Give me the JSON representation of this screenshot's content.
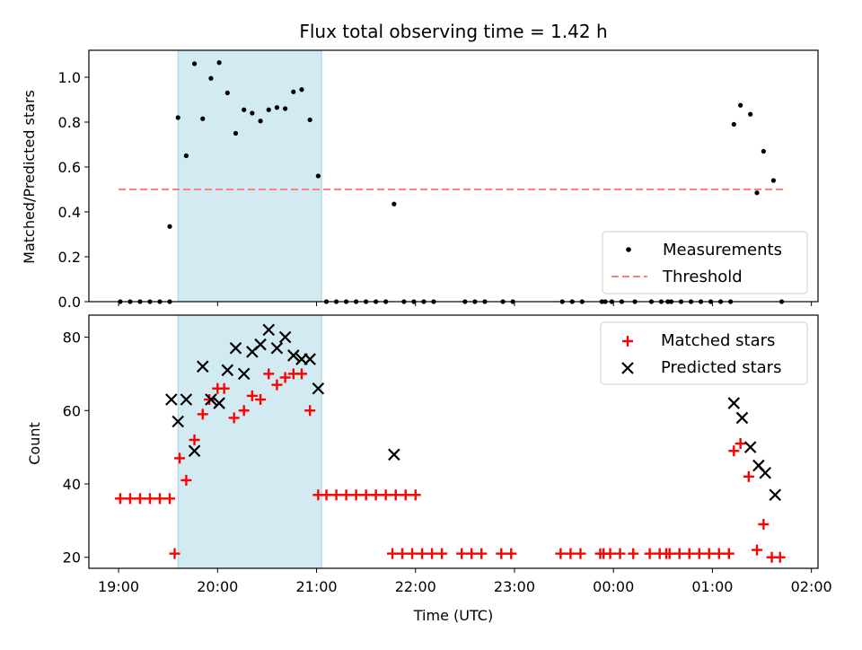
{
  "chart_data": [
    {
      "type": "scatter",
      "title": "Flux total observing time = 1.42 h",
      "xlabel": "",
      "ylabel": "Matched/Predicted stars",
      "xlim": [
        "18:42",
        "02:04"
      ],
      "ylim": [
        0,
        1.12
      ],
      "yticks": [
        "0.0",
        "0.2",
        "0.4",
        "0.6",
        "0.8",
        "1.0"
      ],
      "yticks_values": [
        0.0,
        0.2,
        0.4,
        0.6,
        0.8,
        1.0
      ],
      "grid": false,
      "legend_position": "lower right",
      "shaded_interval": {
        "start": "19:36",
        "end": "21:03",
        "color": "#add8e6"
      },
      "threshold": {
        "name": "Threshold",
        "value": 0.5,
        "x_start": "19:00",
        "x_end": "01:45",
        "color": "#ff7f7f",
        "style": "dashed"
      },
      "series": [
        {
          "name": "Measurements",
          "color": "#000000",
          "marker": "dot",
          "points": [
            [
              "19:01",
              0
            ],
            [
              "19:07",
              0
            ],
            [
              "19:13",
              0
            ],
            [
              "19:19",
              0
            ],
            [
              "19:25",
              0
            ],
            [
              "19:31",
              0
            ],
            [
              "19:31",
              0.335
            ],
            [
              "19:36",
              0.82
            ],
            [
              "19:41",
              0.65
            ],
            [
              "19:46",
              1.06
            ],
            [
              "19:51",
              0.815
            ],
            [
              "19:56",
              0.995
            ],
            [
              "20:01",
              1.065
            ],
            [
              "20:06",
              0.93
            ],
            [
              "20:11",
              0.75
            ],
            [
              "20:16",
              0.855
            ],
            [
              "20:21",
              0.84
            ],
            [
              "20:26",
              0.805
            ],
            [
              "20:31",
              0.855
            ],
            [
              "20:36",
              0.865
            ],
            [
              "20:41",
              0.86
            ],
            [
              "20:46",
              0.935
            ],
            [
              "20:51",
              0.945
            ],
            [
              "20:56",
              0.81
            ],
            [
              "21:01",
              0.56
            ],
            [
              "21:06",
              0
            ],
            [
              "21:12",
              0
            ],
            [
              "21:18",
              0
            ],
            [
              "21:24",
              0
            ],
            [
              "21:30",
              0
            ],
            [
              "21:36",
              0
            ],
            [
              "21:42",
              0
            ],
            [
              "21:47",
              0.435
            ],
            [
              "21:53",
              0
            ],
            [
              "21:59",
              0
            ],
            [
              "22:05",
              0
            ],
            [
              "22:11",
              0
            ],
            [
              "22:30",
              0
            ],
            [
              "22:36",
              0
            ],
            [
              "22:42",
              0
            ],
            [
              "22:53",
              0
            ],
            [
              "22:59",
              0
            ],
            [
              "23:29",
              0
            ],
            [
              "23:35",
              0
            ],
            [
              "23:41",
              0
            ],
            [
              "23:53",
              0
            ],
            [
              "23:55",
              0
            ],
            [
              "23:59",
              0
            ],
            [
              "00:05",
              0
            ],
            [
              "00:13",
              0
            ],
            [
              "00:23",
              0
            ],
            [
              "00:29",
              0
            ],
            [
              "00:33",
              0
            ],
            [
              "00:35",
              0
            ],
            [
              "00:41",
              0
            ],
            [
              "00:47",
              0
            ],
            [
              "00:53",
              0
            ],
            [
              "00:59",
              0
            ],
            [
              "01:05",
              0
            ],
            [
              "01:11",
              0
            ],
            [
              "01:13",
              0.79
            ],
            [
              "01:17",
              0.875
            ],
            [
              "01:23",
              0.835
            ],
            [
              "01:27",
              0.485
            ],
            [
              "01:31",
              0.67
            ],
            [
              "01:37",
              0.54
            ],
            [
              "01:42",
              0
            ]
          ]
        },
        {
          "name": "Threshold",
          "color": "#ff7f7f",
          "style": "dashed"
        }
      ]
    },
    {
      "type": "scatter",
      "title": "",
      "xlabel": "Time (UTC)",
      "ylabel": "Count",
      "xlim": [
        "18:42",
        "02:04"
      ],
      "xticks": [
        "19:00",
        "20:00",
        "21:00",
        "22:00",
        "23:00",
        "00:00",
        "01:00",
        "02:00"
      ],
      "ylim": [
        17,
        86
      ],
      "yticks": [
        "20",
        "40",
        "60",
        "80"
      ],
      "yticks_values": [
        20,
        40,
        60,
        80
      ],
      "grid": false,
      "legend_position": "upper right",
      "shaded_interval": {
        "start": "19:36",
        "end": "21:03",
        "color": "#add8e6"
      },
      "series": [
        {
          "name": "Matched stars",
          "color": "#ff0000",
          "marker": "plus",
          "points": [
            [
              "19:01",
              36
            ],
            [
              "19:07",
              36
            ],
            [
              "19:13",
              36
            ],
            [
              "19:19",
              36
            ],
            [
              "19:25",
              36
            ],
            [
              "19:31",
              36
            ],
            [
              "19:34",
              21
            ],
            [
              "19:37",
              47
            ],
            [
              "19:41",
              41
            ],
            [
              "19:46",
              52
            ],
            [
              "19:51",
              59
            ],
            [
              "19:55",
              63
            ],
            [
              "20:00",
              66
            ],
            [
              "20:04",
              66
            ],
            [
              "20:10",
              58
            ],
            [
              "20:16",
              60
            ],
            [
              "20:21",
              64
            ],
            [
              "20:26",
              63
            ],
            [
              "20:31",
              70
            ],
            [
              "20:36",
              67
            ],
            [
              "20:41",
              69
            ],
            [
              "20:46",
              70
            ],
            [
              "20:51",
              70
            ],
            [
              "20:56",
              60
            ],
            [
              "21:01",
              37
            ],
            [
              "21:06",
              37
            ],
            [
              "21:12",
              37
            ],
            [
              "21:18",
              37
            ],
            [
              "21:24",
              37
            ],
            [
              "21:30",
              37
            ],
            [
              "21:36",
              37
            ],
            [
              "21:42",
              37
            ],
            [
              "21:48",
              37
            ],
            [
              "21:54",
              37
            ],
            [
              "22:00",
              37
            ],
            [
              "21:46",
              21
            ],
            [
              "21:52",
              21
            ],
            [
              "21:58",
              21
            ],
            [
              "22:04",
              21
            ],
            [
              "22:10",
              21
            ],
            [
              "22:16",
              21
            ],
            [
              "22:28",
              21
            ],
            [
              "22:34",
              21
            ],
            [
              "22:40",
              21
            ],
            [
              "22:52",
              21
            ],
            [
              "22:58",
              21
            ],
            [
              "23:28",
              21
            ],
            [
              "23:34",
              21
            ],
            [
              "23:40",
              21
            ],
            [
              "23:52",
              21
            ],
            [
              "23:54",
              21
            ],
            [
              "23:58",
              21
            ],
            [
              "00:04",
              21
            ],
            [
              "00:12",
              21
            ],
            [
              "00:22",
              21
            ],
            [
              "00:28",
              21
            ],
            [
              "00:32",
              21
            ],
            [
              "00:34",
              21
            ],
            [
              "00:40",
              21
            ],
            [
              "00:46",
              21
            ],
            [
              "00:52",
              21
            ],
            [
              "00:58",
              21
            ],
            [
              "01:04",
              21
            ],
            [
              "01:10",
              21
            ],
            [
              "01:13",
              49
            ],
            [
              "01:17",
              51
            ],
            [
              "01:22",
              42
            ],
            [
              "01:27",
              22
            ],
            [
              "01:31",
              29
            ],
            [
              "01:36",
              20
            ],
            [
              "01:41",
              20
            ]
          ]
        },
        {
          "name": "Predicted stars",
          "color": "#000000",
          "marker": "x",
          "points": [
            [
              "19:32",
              63
            ],
            [
              "19:36",
              57
            ],
            [
              "19:41",
              63
            ],
            [
              "19:46",
              49
            ],
            [
              "19:51",
              72
            ],
            [
              "19:56",
              63
            ],
            [
              "20:01",
              62
            ],
            [
              "20:06",
              71
            ],
            [
              "20:11",
              77
            ],
            [
              "20:16",
              70
            ],
            [
              "20:21",
              76
            ],
            [
              "20:26",
              78
            ],
            [
              "20:31",
              82
            ],
            [
              "20:36",
              77
            ],
            [
              "20:41",
              80
            ],
            [
              "20:46",
              75
            ],
            [
              "20:51",
              74
            ],
            [
              "20:56",
              74
            ],
            [
              "21:01",
              66
            ],
            [
              "21:47",
              48
            ],
            [
              "01:13",
              62
            ],
            [
              "01:18",
              58
            ],
            [
              "01:23",
              50
            ],
            [
              "01:28",
              45
            ],
            [
              "01:32",
              43
            ],
            [
              "01:38",
              37
            ]
          ]
        }
      ]
    }
  ]
}
